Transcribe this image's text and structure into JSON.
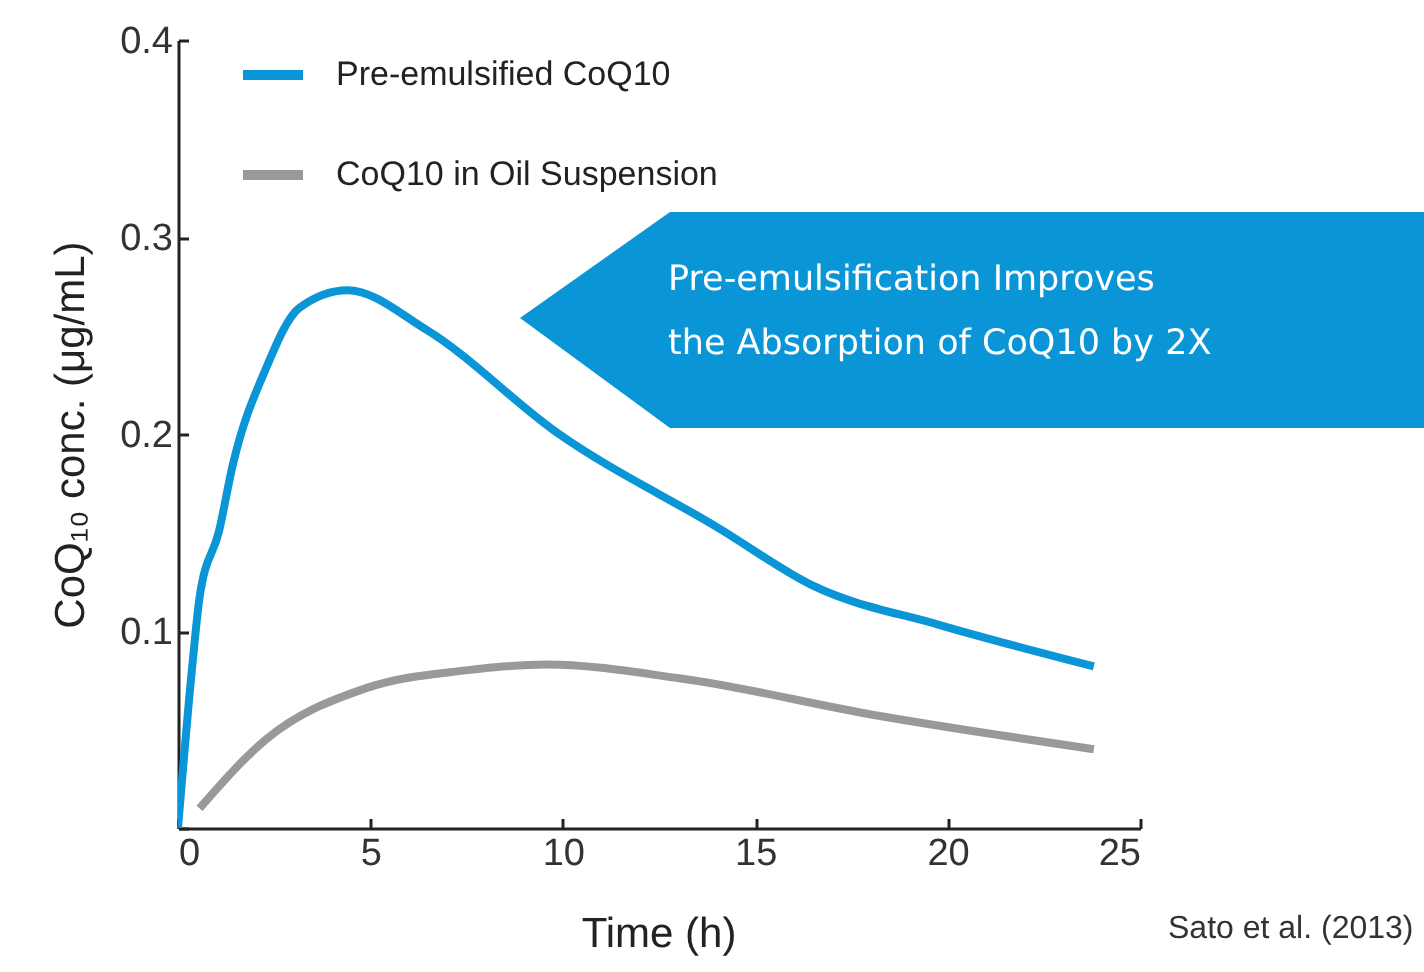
{
  "chart_data": {
    "type": "line",
    "xlabel": "Time (h)",
    "ylabel": "CoQ₁₀ conc. (μg/mL)",
    "xlim": [
      0,
      25
    ],
    "xticks": [
      0,
      5,
      10,
      15,
      20,
      25
    ],
    "ylim": [
      0,
      0.4
    ],
    "yticks": [
      {
        "value": 0,
        "label": null
      },
      0.1,
      0.2,
      0.3,
      0.4
    ],
    "grid": false,
    "legend": "top left",
    "line_style": "solid",
    "annotations": [
      "Pre-emulsification Improves\nthe Absorption of CoQ10 by 2X",
      "Sato et al. (2013)"
    ],
    "series": [
      {
        "name": "Pre-emulsified CoQ10",
        "color": "#0a96d6",
        "x": [
          0,
          0.37,
          0.56,
          1.07,
          1.42,
          2.28,
          3.15,
          4.4,
          6.45,
          9.9,
          14.07,
          16.5,
          19.8,
          23.8
        ],
        "values": [
          0,
          0.082,
          0.117,
          0.151,
          0.184,
          0.233,
          0.264,
          0.273,
          0.253,
          0.2,
          0.152,
          0.123,
          0.103,
          0.082
        ]
      },
      {
        "name": "CoQ10 in Oil Suspension",
        "color": "#999999",
        "x": [
          0.56,
          2.29,
          4.89,
          7.48,
          9.56,
          13.03,
          18.2,
          23.8
        ],
        "values": [
          0.01,
          0.045,
          0.071,
          0.08,
          0.083,
          0.076,
          0.057,
          0.04
        ]
      }
    ]
  }
}
